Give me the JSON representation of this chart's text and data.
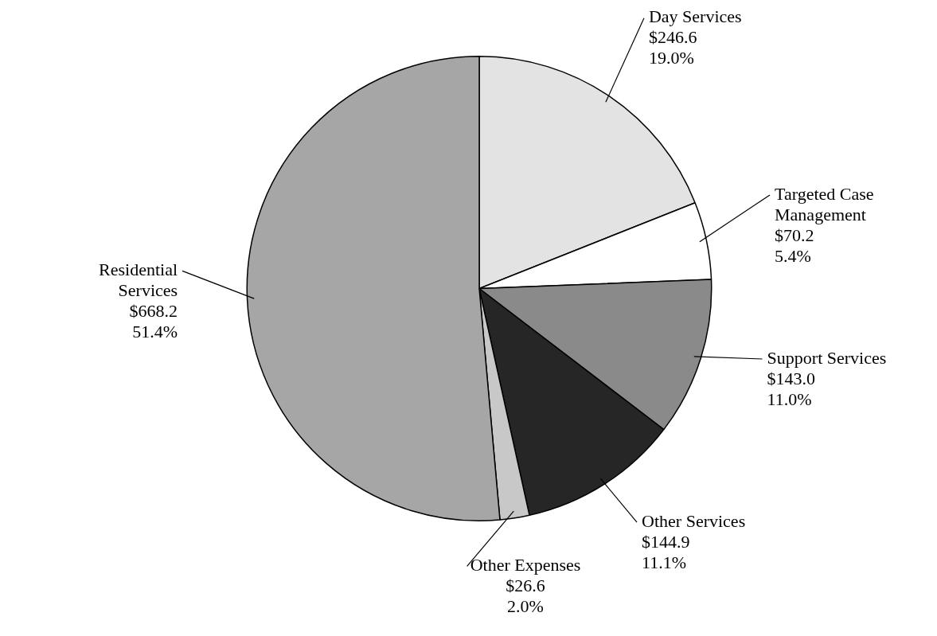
{
  "chart_data": {
    "type": "pie",
    "categories": [
      "Day Services",
      "Targeted Case Management",
      "Support Services",
      "Other Services",
      "Other Expenses",
      "Residential Services"
    ],
    "values": [
      246.6,
      70.2,
      143.0,
      144.9,
      26.6,
      668.2
    ],
    "value_labels": [
      "$246.6\n19.0%",
      "$70.2\n5.4%",
      "$143.0\n11.0%",
      "$144.9\n11.1%",
      "$26.6\n2.0%",
      "$668.2\n51.4%"
    ],
    "colors": [
      "#e3e3e3",
      "#ffffff",
      "#8a8a8a",
      "#262626",
      "#c8c8c8",
      "#a6a6a6"
    ],
    "legend": false
  }
}
